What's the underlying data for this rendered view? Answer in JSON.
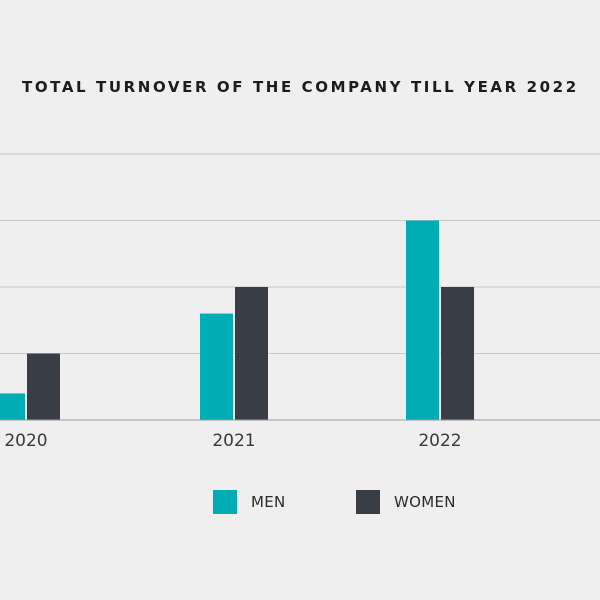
{
  "chart_data": {
    "type": "bar",
    "title": "TOTAL TURNOVER OF THE COMPANY TILL YEAR 2022",
    "categories": [
      "2020",
      "2021",
      "2022"
    ],
    "series": [
      {
        "name": "MEN",
        "color": "#00adb5",
        "values": [
          0.4,
          1.6,
          3.0
        ]
      },
      {
        "name": "WOMEN",
        "color": "#393e46",
        "values": [
          1.0,
          2.0,
          2.0
        ]
      }
    ],
    "ylim": [
      0,
      4
    ],
    "grid": true,
    "legend": "bottom"
  }
}
